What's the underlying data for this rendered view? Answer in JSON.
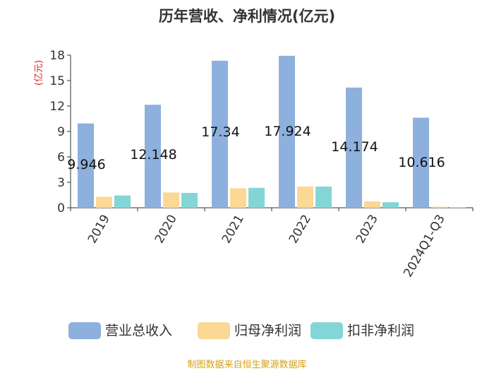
{
  "chart_data": {
    "type": "bar",
    "title": "历年营收、净利情况(亿元)",
    "ylabel": "(亿元)",
    "ylim": [
      0,
      18
    ],
    "yticks": [
      0,
      3,
      6,
      9,
      12,
      15,
      18
    ],
    "categories": [
      "2019",
      "2020",
      "2021",
      "2022",
      "2023",
      "2024Q1-Q3"
    ],
    "series": [
      {
        "name": "营业总收入",
        "color": "#8eb0dd",
        "values": [
          9.946,
          12.148,
          17.34,
          17.924,
          14.174,
          10.616
        ]
      },
      {
        "name": "归母净利润",
        "color": "#fcd895",
        "values": [
          1.3,
          1.8,
          2.3,
          2.5,
          0.75,
          0.12
        ]
      },
      {
        "name": "扣非净利润",
        "color": "#84d6d6",
        "values": [
          1.45,
          1.75,
          2.35,
          2.5,
          0.65,
          0.05
        ]
      }
    ],
    "data_labels": [
      "9.946",
      "12.148",
      "17.34",
      "17.924",
      "14.174",
      "10.616"
    ],
    "grid": false,
    "legend_position": "bottom"
  },
  "source": "制图数据来自恒生聚源数据库"
}
